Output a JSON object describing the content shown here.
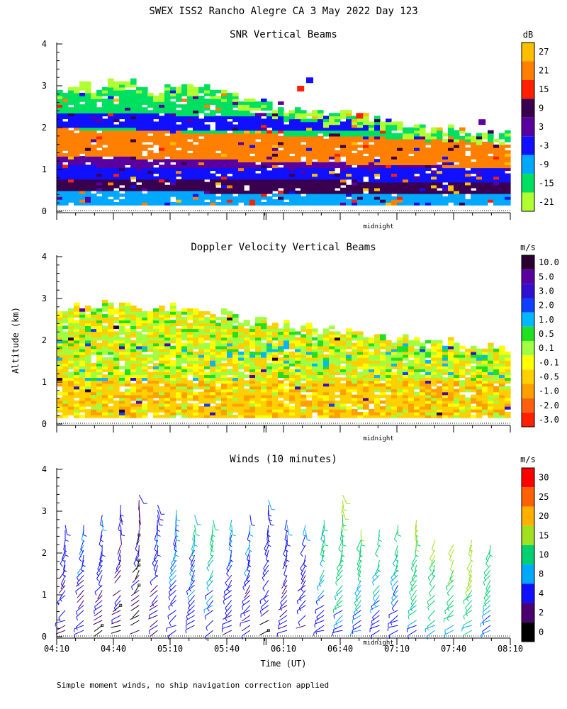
{
  "header": {
    "title": "SWEX ISS2 Rancho Alegre CA   3 May 2022 Day 123"
  },
  "footer": {
    "note": "Simple moment winds, no ship navigation correction applied"
  },
  "y_axis_label": "Altitude (km)",
  "x_axis_label": "Time (UT)",
  "midnight_label": "midnight",
  "chart_data": [
    {
      "type": "heatmap",
      "title": "SNR Vertical Beams",
      "ylabel": "Altitude (km)",
      "ylim": [
        0,
        4
      ],
      "yticks": [
        "0",
        "1",
        "2",
        "3",
        "4"
      ],
      "xlim": [
        "04:10",
        "08:10"
      ],
      "colorbar": {
        "unit": "dB",
        "labels": [
          "27",
          "21",
          "15",
          "9",
          "3",
          "-3",
          "-9",
          "-15",
          "-21"
        ],
        "colors": [
          "#ffbf00",
          "#ff7f00",
          "#ff2000",
          "#3a0050",
          "#5a00a0",
          "#1010ff",
          "#00a8ff",
          "#00e060",
          "#b0ff30"
        ]
      },
      "field": {
        "top_altitude_km": [
          2.7,
          2.8,
          2.85,
          2.9,
          2.7,
          2.9,
          2.8,
          2.6,
          2.5,
          2.4,
          2.3,
          2.2,
          2.15,
          2.1,
          2.0,
          1.9,
          1.8,
          1.75,
          1.7,
          1.7
        ],
        "layers": [
          {
            "name": "surface",
            "bottom": 0.15,
            "top": 0.45,
            "color": "#00a8ff"
          },
          {
            "name": "low",
            "bottom": 0.45,
            "top": 0.75,
            "color": "#3a0050"
          },
          {
            "name": "mid_blue",
            "bottom": 0.75,
            "top": 1.05,
            "color": "#1010ff"
          },
          {
            "name": "mid_purple",
            "bottom": 1.05,
            "top": 1.3,
            "color": "#5a00a0"
          },
          {
            "name": "orange_band",
            "bottom": 1.3,
            "top": 1.95,
            "color": "#ff7f00"
          },
          {
            "name": "upper",
            "bottom": 1.95,
            "top": 2.3,
            "color": "#1010ff"
          },
          {
            "name": "fringe",
            "bottom": 2.3,
            "top": 2.7,
            "color": "#00e060"
          }
        ]
      }
    },
    {
      "type": "heatmap",
      "title": "Doppler Velocity Vertical Beams",
      "ylabel": "Altitude (km)",
      "ylim": [
        0,
        4
      ],
      "yticks": [
        "0",
        "1",
        "2",
        "3",
        "4"
      ],
      "xlim": [
        "04:10",
        "08:10"
      ],
      "colorbar": {
        "unit": "m/s",
        "labels": [
          "10.0",
          "5.0",
          "3.0",
          "2.0",
          "1.0",
          "0.5",
          "0.1",
          "-0.1",
          "-0.5",
          "-1.0",
          "-2.0",
          "-3.0"
        ],
        "colors": [
          "#2a0030",
          "#5a00a0",
          "#3010d0",
          "#1040ff",
          "#00b8ff",
          "#20e020",
          "#a0ff40",
          "#ffff00",
          "#ffd000",
          "#ffa000",
          "#ff6010",
          "#ff2000"
        ]
      },
      "field": {
        "top_altitude_km": [
          2.6,
          2.7,
          2.75,
          2.7,
          2.6,
          2.7,
          2.6,
          2.5,
          2.4,
          2.3,
          2.2,
          2.1,
          2.1,
          2.0,
          1.9,
          1.9,
          1.85,
          1.8,
          1.75,
          1.7
        ]
      }
    },
    {
      "type": "scatter",
      "subtype": "wind_barbs",
      "title": "Winds (10 minutes)",
      "ylabel": "Altitude (km)",
      "xlabel": "Time (UT)",
      "ylim": [
        0,
        4
      ],
      "yticks": [
        "0",
        "1",
        "2",
        "3",
        "4"
      ],
      "xticks": [
        "04:10",
        "04:40",
        "05:10",
        "05:40",
        "06:10",
        "06:40",
        "07:10",
        "07:40",
        "08:10"
      ],
      "colorbar": {
        "unit": "m/s",
        "labels": [
          "30",
          "25",
          "20",
          "15",
          "10",
          "8",
          "4",
          "2",
          "0"
        ],
        "colors": [
          "#ff0000",
          "#ff6000",
          "#ffb000",
          "#a0e020",
          "#00d070",
          "#00a8ff",
          "#1010ff",
          "#4a0070",
          "#000000"
        ]
      },
      "profiles": {
        "count": 24,
        "top_altitude_km": [
          2.9,
          2.8,
          3.0,
          3.2,
          3.4,
          3.3,
          3.1,
          3.0,
          2.9,
          2.9,
          3.0,
          3.3,
          3.0,
          2.7,
          2.9,
          3.5,
          2.6,
          2.6,
          2.7,
          2.8,
          2.4,
          2.3,
          2.4,
          2.3
        ],
        "speed_mps": [
          4,
          6,
          5,
          4,
          3,
          5,
          7,
          8,
          9,
          7,
          6,
          5,
          5,
          6,
          9,
          11,
          12,
          10,
          10,
          12,
          14,
          15,
          16,
          12
        ]
      }
    }
  ]
}
